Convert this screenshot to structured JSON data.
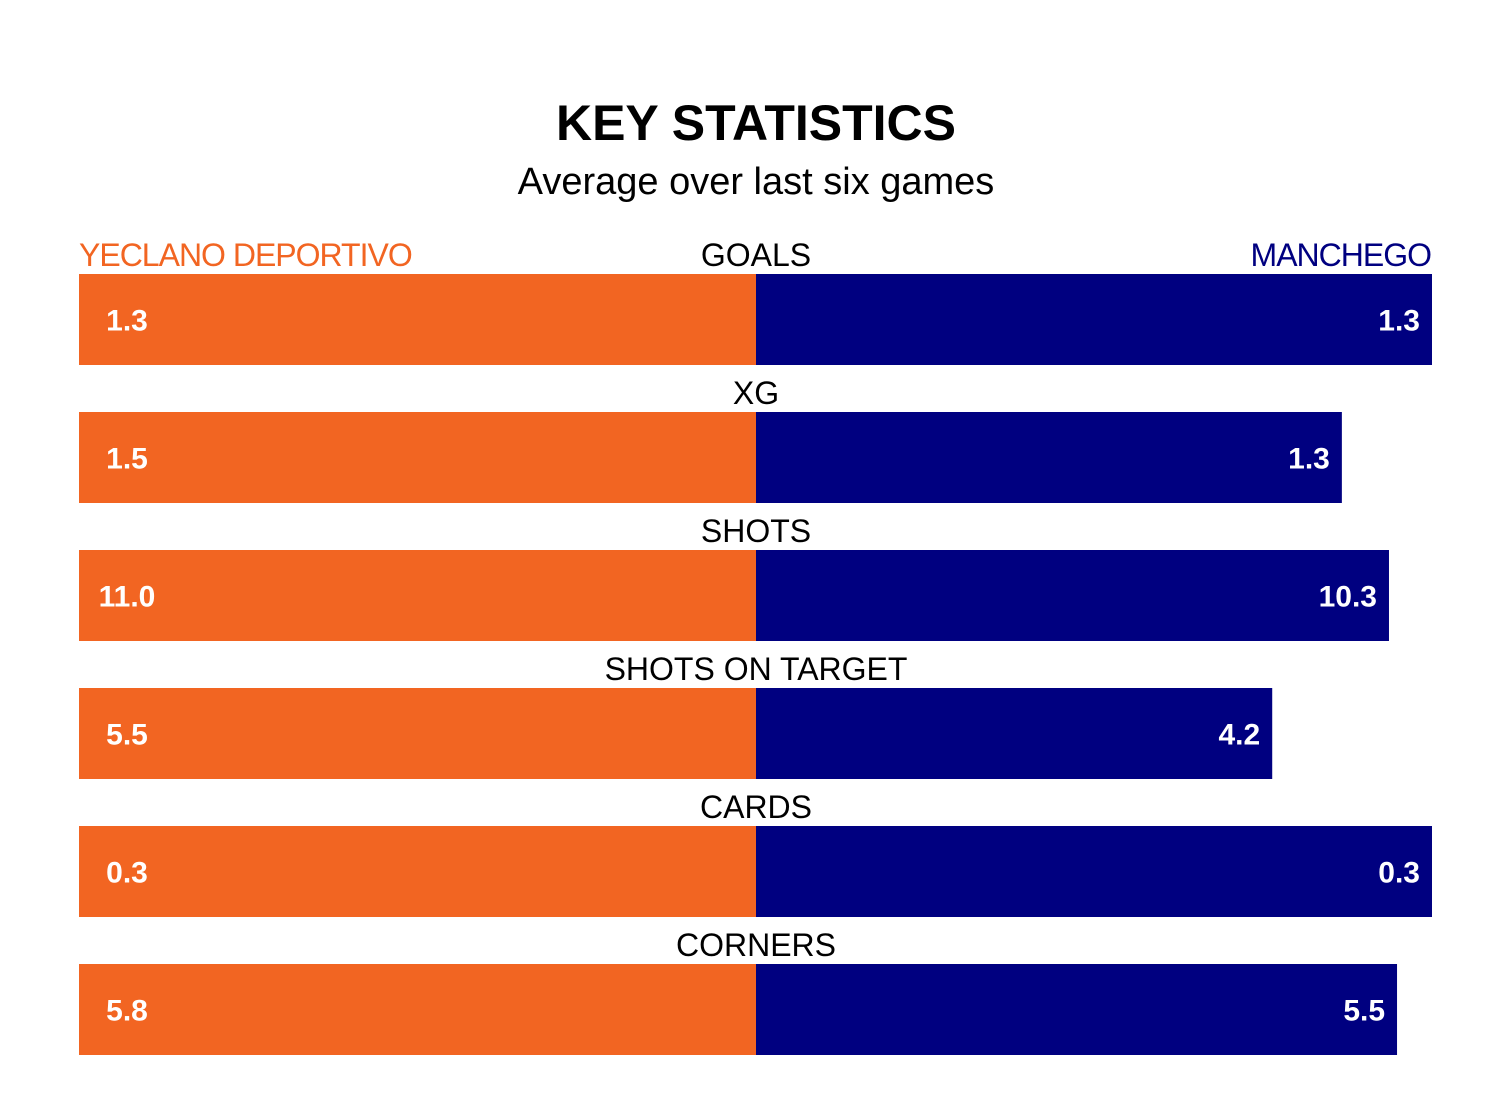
{
  "chart_data": {
    "type": "bar",
    "title": "KEY STATISTICS",
    "subtitle": "Average over last six games",
    "categories": [
      "GOALS",
      "XG",
      "SHOTS",
      "SHOTS ON TARGET",
      "CARDS",
      "CORNERS"
    ],
    "series": [
      {
        "name": "YECLANO DEPORTIVO",
        "color": "#F26522",
        "values": [
          1.3,
          1.5,
          11.0,
          5.5,
          0.3,
          5.8
        ],
        "labels": [
          "1.3",
          "1.5",
          "11.0",
          "5.5",
          "0.3",
          "5.8"
        ]
      },
      {
        "name": "MANCHEGO",
        "color": "#000080",
        "values": [
          1.3,
          1.3,
          10.3,
          4.2,
          0.3,
          5.5
        ],
        "labels": [
          "1.3",
          "1.3",
          "10.3",
          "4.2",
          "0.3",
          "5.5"
        ]
      }
    ],
    "layout": "diverging-from-center, left team extends to fixed edge, right bar scaled relative to category maximum"
  }
}
